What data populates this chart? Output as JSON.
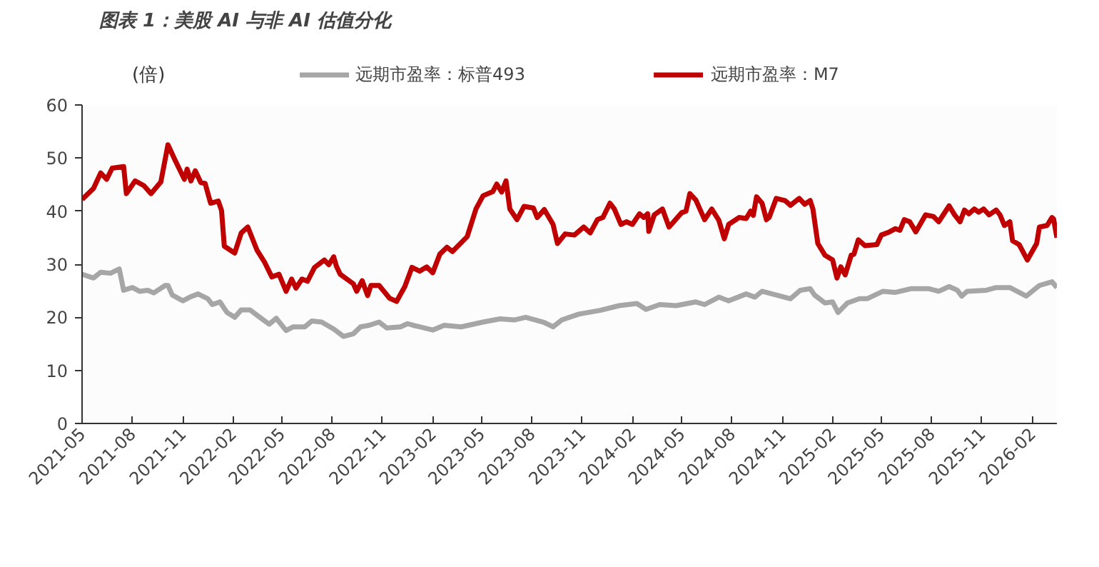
{
  "chart_data": {
    "type": "line",
    "title": "图表 1：美股 AI 与非 AI 估值分化",
    "ylabel": "(倍)",
    "xlim": [
      "2021-05-01",
      "2026-03-18"
    ],
    "xticks": [
      "2021-05",
      "2021-08",
      "2021-11",
      "2022-02",
      "2022-05",
      "2022-08",
      "2022-11",
      "2023-02",
      "2023-05",
      "2023-08",
      "2023-11",
      "2024-02",
      "2024-05",
      "2024-08",
      "2024-11",
      "2025-02",
      "2025-05",
      "2025-08",
      "2025-11",
      "2026-02"
    ],
    "ylim": [
      0,
      60
    ],
    "yticks": [
      0,
      10,
      20,
      30,
      40,
      50,
      60
    ],
    "grid": false,
    "legend": "top",
    "line_style": "solid",
    "marker": "none",
    "series": [
      {
        "name": "远期市盈率：标普493",
        "color": "#a6a6a6",
        "x": [
          "2021-05-01",
          "2021-05-22",
          "2021-06-04",
          "2021-06-22",
          "2021-07-08",
          "2021-07-16",
          "2021-08-01",
          "2021-08-14",
          "2021-08-29",
          "2021-09-09",
          "2021-09-30",
          "2021-10-05",
          "2021-10-13",
          "2021-11-01",
          "2021-11-14",
          "2021-11-29",
          "2021-12-17",
          "2021-12-25",
          "2022-01-08",
          "2022-01-21",
          "2022-02-04",
          "2022-02-16",
          "2022-03-04",
          "2022-03-22",
          "2022-04-08",
          "2022-04-21",
          "2022-05-09",
          "2022-05-22",
          "2022-06-12",
          "2022-06-25",
          "2022-07-13",
          "2022-08-04",
          "2022-08-22",
          "2022-09-09",
          "2022-09-22",
          "2022-10-08",
          "2022-10-26",
          "2022-11-09",
          "2022-12-04",
          "2022-12-17",
          "2022-12-27",
          "2023-01-08",
          "2023-02-01",
          "2023-02-22",
          "2023-03-25",
          "2023-05-04",
          "2023-06-04",
          "2023-06-30",
          "2023-07-21",
          "2023-08-22",
          "2023-09-09",
          "2023-09-25",
          "2023-10-26",
          "2023-12-04",
          "2024-01-08",
          "2024-02-09",
          "2024-02-26",
          "2024-03-22",
          "2024-04-21",
          "2024-05-27",
          "2024-06-12",
          "2024-07-08",
          "2024-07-26",
          "2024-08-27",
          "2024-09-12",
          "2024-09-25",
          "2024-10-21",
          "2024-11-16",
          "2024-12-04",
          "2024-12-22",
          "2024-12-30",
          "2025-01-18",
          "2025-02-01",
          "2025-02-11",
          "2025-02-28",
          "2025-03-22",
          "2025-04-05",
          "2025-05-04",
          "2025-05-27",
          "2025-06-25",
          "2025-07-26",
          "2025-08-14",
          "2025-09-02",
          "2025-09-17",
          "2025-09-25",
          "2025-10-05",
          "2025-11-09",
          "2025-11-27",
          "2025-12-22",
          "2026-01-21",
          "2026-02-14",
          "2026-03-09",
          "2026-03-18"
        ],
        "values": [
          28.1,
          27.4,
          28.5,
          28.3,
          29.1,
          25.1,
          25.6,
          24.9,
          25.1,
          24.6,
          26,
          26,
          24.2,
          23.1,
          23.8,
          24.4,
          23.5,
          22.4,
          22.9,
          20.9,
          20,
          21.4,
          21.4,
          20,
          18.7,
          19.8,
          17.5,
          18.2,
          18.2,
          19.3,
          19.1,
          17.8,
          16.4,
          16.9,
          18.2,
          18.5,
          19.1,
          18,
          18.2,
          18.8,
          18.5,
          18.2,
          17.6,
          18.5,
          18.2,
          19.1,
          19.7,
          19.5,
          20,
          19.1,
          18.2,
          19.5,
          20.6,
          21.3,
          22.2,
          22.6,
          21.5,
          22.4,
          22.2,
          22.9,
          22.4,
          23.8,
          23.1,
          24.4,
          23.8,
          24.9,
          24.2,
          23.5,
          25.1,
          25.4,
          24.2,
          22.7,
          22.9,
          20.9,
          22.7,
          23.5,
          23.5,
          24.9,
          24.7,
          25.4,
          25.4,
          24.9,
          25.8,
          25.1,
          24,
          24.9,
          25.1,
          25.6,
          25.6,
          24,
          26,
          26.7,
          25.6
        ]
      },
      {
        "name": "远期市盈率：M7",
        "color": "#c00000",
        "x": [
          "2021-05-01",
          "2021-05-22",
          "2021-06-04",
          "2021-06-15",
          "2021-06-25",
          "2021-07-16",
          "2021-07-21",
          "2021-08-06",
          "2021-08-22",
          "2021-09-04",
          "2021-09-22",
          "2021-10-05",
          "2021-10-18",
          "2021-11-04",
          "2021-11-09",
          "2021-11-16",
          "2021-11-24",
          "2021-12-04",
          "2021-12-12",
          "2021-12-22",
          "2022-01-05",
          "2022-01-11",
          "2022-01-16",
          "2022-02-04",
          "2022-02-16",
          "2022-02-28",
          "2022-03-17",
          "2022-03-30",
          "2022-04-13",
          "2022-04-26",
          "2022-05-09",
          "2022-05-19",
          "2022-05-27",
          "2022-06-07",
          "2022-06-17",
          "2022-06-30",
          "2022-07-18",
          "2022-07-26",
          "2022-08-04",
          "2022-08-09",
          "2022-08-16",
          "2022-09-09",
          "2022-09-15",
          "2022-09-25",
          "2022-10-05",
          "2022-10-11",
          "2022-10-26",
          "2022-11-14",
          "2022-11-27",
          "2022-12-12",
          "2022-12-25",
          "2023-01-08",
          "2023-01-21",
          "2023-02-01",
          "2023-02-14",
          "2023-02-27",
          "2023-03-09",
          "2023-04-05",
          "2023-04-21",
          "2023-05-04",
          "2023-05-22",
          "2023-05-29",
          "2023-06-07",
          "2023-06-15",
          "2023-06-22",
          "2023-07-05",
          "2023-07-18",
          "2023-08-04",
          "2023-08-11",
          "2023-08-24",
          "2023-09-09",
          "2023-09-17",
          "2023-10-01",
          "2023-10-18",
          "2023-11-04",
          "2023-11-16",
          "2023-11-29",
          "2023-12-09",
          "2023-12-22",
          "2023-12-30",
          "2024-01-11",
          "2024-01-21",
          "2024-02-01",
          "2024-02-14",
          "2024-02-22",
          "2024-02-29",
          "2024-03-02",
          "2024-03-12",
          "2024-03-27",
          "2024-04-08",
          "2024-05-01",
          "2024-05-09",
          "2024-05-16",
          "2024-05-27",
          "2024-06-12",
          "2024-06-25",
          "2024-07-08",
          "2024-07-18",
          "2024-07-26",
          "2024-08-14",
          "2024-08-27",
          "2024-09-04",
          "2024-09-09",
          "2024-09-15",
          "2024-09-25",
          "2024-10-03",
          "2024-10-08",
          "2024-10-21",
          "2024-11-06",
          "2024-11-16",
          "2024-12-02",
          "2024-12-12",
          "2024-12-22",
          "2024-12-27",
          "2025-01-05",
          "2025-01-18",
          "2025-02-01",
          "2025-02-09",
          "2025-02-16",
          "2025-02-24",
          "2025-03-07",
          "2025-03-12",
          "2025-03-20",
          "2025-04-01",
          "2025-04-23",
          "2025-05-01",
          "2025-05-16",
          "2025-05-27",
          "2025-06-04",
          "2025-06-12",
          "2025-06-22",
          "2025-07-03",
          "2025-07-21",
          "2025-08-04",
          "2025-08-14",
          "2025-09-02",
          "2025-09-12",
          "2025-09-22",
          "2025-09-30",
          "2025-10-08",
          "2025-10-18",
          "2025-10-26",
          "2025-11-04",
          "2025-11-14",
          "2025-11-27",
          "2025-12-04",
          "2025-12-12",
          "2025-12-22",
          "2025-12-27",
          "2026-01-08",
          "2026-01-23",
          "2026-02-09",
          "2026-02-14",
          "2026-02-28",
          "2026-03-09",
          "2026-03-12",
          "2026-03-18"
        ],
        "values": [
          42.2,
          44.3,
          47.2,
          46,
          48.1,
          48.4,
          43.3,
          45.7,
          44.8,
          43.3,
          45.5,
          52.5,
          49.6,
          46,
          47.9,
          45.7,
          47.6,
          45.4,
          45.2,
          41.5,
          41.9,
          40.1,
          33.4,
          32.1,
          35.9,
          37,
          32.6,
          30.5,
          27.6,
          28.1,
          24.9,
          27.2,
          25.5,
          27.2,
          26.8,
          29.4,
          30.8,
          29.9,
          31.4,
          29.6,
          28.1,
          26.3,
          24.9,
          26.9,
          24.1,
          26,
          26,
          23.6,
          23,
          25.8,
          29.4,
          28.7,
          29.5,
          28.4,
          31.9,
          33.2,
          32.4,
          35.2,
          40.4,
          42.9,
          43.7,
          45.1,
          43.6,
          45.7,
          40.4,
          38.4,
          40.9,
          40.6,
          38.8,
          40.3,
          37.5,
          33.9,
          35.7,
          35.5,
          37,
          35.9,
          38.4,
          38.8,
          41.5,
          40.4,
          37.5,
          38,
          37.5,
          39.5,
          38.8,
          39.5,
          36.2,
          39.3,
          40.4,
          37,
          39.7,
          40,
          43.3,
          42.1,
          38.4,
          40.4,
          38.3,
          34.8,
          37.5,
          38.8,
          38.6,
          40,
          39.2,
          42.7,
          41.5,
          38.4,
          38.8,
          42.4,
          42,
          41.1,
          42.4,
          41.3,
          42,
          40.4,
          33.9,
          31.7,
          30.8,
          27.4,
          29.5,
          28,
          31.7,
          31.9,
          34.6,
          33.5,
          33.7,
          35.5,
          36.1,
          36.7,
          36.4,
          38.4,
          38,
          36.1,
          39.3,
          39,
          38,
          41,
          39.3,
          38,
          40.2,
          39.5,
          40.4,
          39.8,
          40.4,
          39.3,
          40.2,
          39.3,
          37.3,
          38,
          34.4,
          33.7,
          30.8,
          33.9,
          37,
          37.3,
          38.8,
          38.5,
          35
        ]
      }
    ]
  }
}
